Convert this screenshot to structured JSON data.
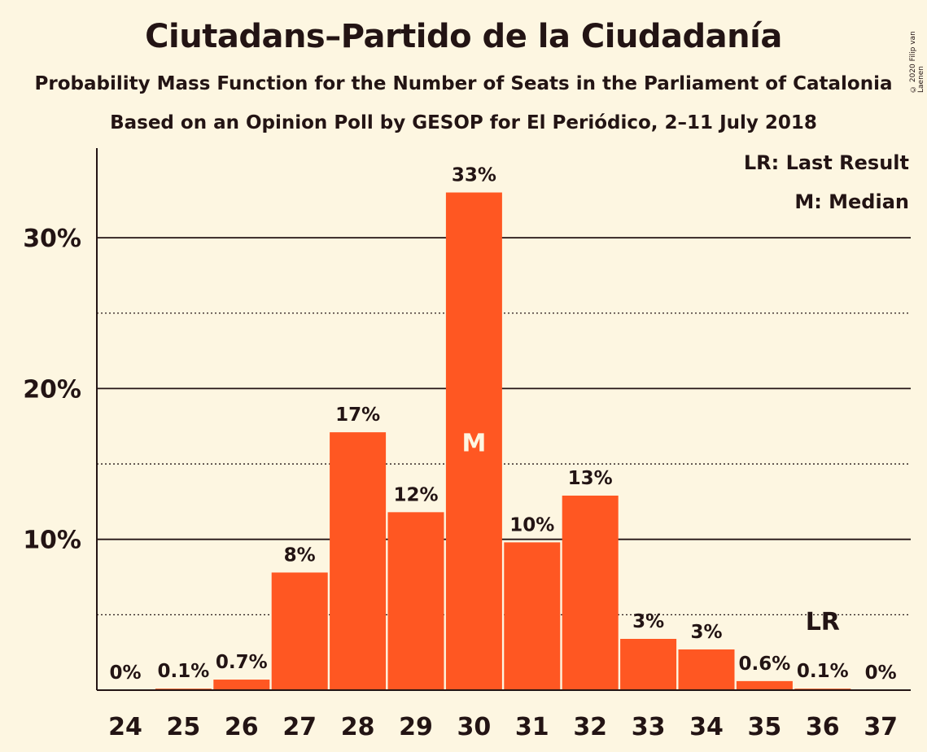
{
  "title": "Ciutadans–Partido de la Ciudadanía",
  "subtitle_1": "Probability Mass Function for the Number of Seats in the Parliament of Catalonia",
  "subtitle_2": "Based on an Opinion Poll by GESOP for El Periódico, 2–11 July 2018",
  "copyright": "© 2020 Filip van Laenen",
  "legend": {
    "last_result": "LR: Last Result",
    "median": "M: Median"
  },
  "colors": {
    "bar": "#ff5722",
    "background": "#fdf6e1",
    "text": "#231414",
    "median_text": "#fdf6e1"
  },
  "chart_data": {
    "type": "bar",
    "title": "Ciutadans–Partido de la Ciudadanía",
    "xlabel": "",
    "ylabel": "",
    "categories": [
      "24",
      "25",
      "26",
      "27",
      "28",
      "29",
      "30",
      "31",
      "32",
      "33",
      "34",
      "35",
      "36",
      "37"
    ],
    "values": [
      0,
      0.1,
      0.7,
      7.8,
      17.1,
      11.8,
      33.0,
      9.8,
      12.9,
      3.4,
      2.7,
      0.6,
      0.1,
      0
    ],
    "data_labels": [
      "0%",
      "0.1%",
      "0.7%",
      "8%",
      "17%",
      "12%",
      "33%",
      "10%",
      "13%",
      "3%",
      "3%",
      "0.6%",
      "0.1%",
      "0%"
    ],
    "y_ticks": [
      10,
      20,
      30
    ],
    "y_tick_labels": [
      "10%",
      "20%",
      "30%"
    ],
    "y_minor_ticks": [
      5,
      15,
      25
    ],
    "ylim": [
      0,
      36
    ],
    "grid": true,
    "median": {
      "category": "30",
      "label": "M"
    },
    "last_result": {
      "category": "36",
      "label": "LR"
    },
    "legend_position": "top-right"
  }
}
